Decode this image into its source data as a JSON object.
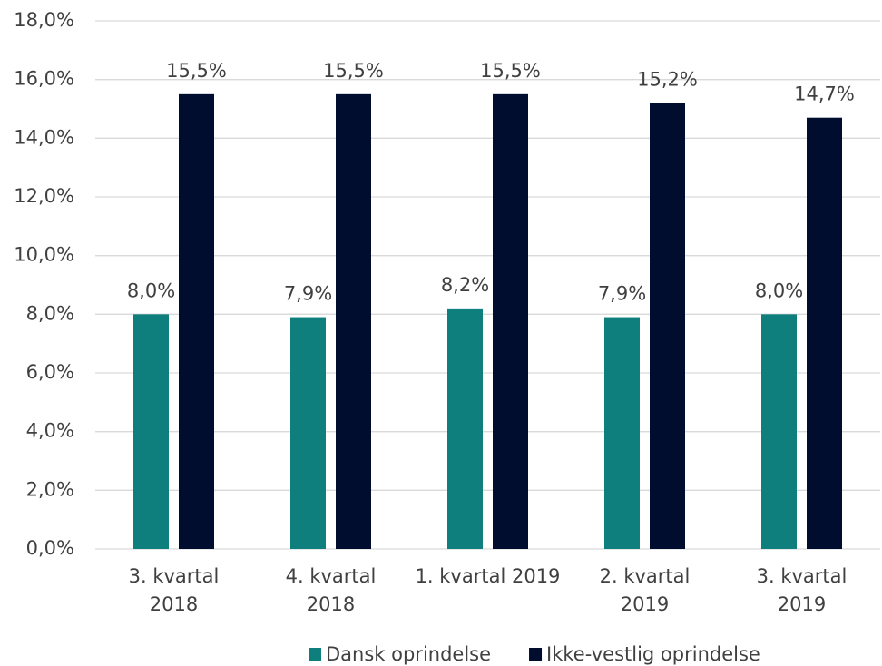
{
  "chart_data": {
    "type": "bar",
    "categories": [
      "3. kvartal\n2018",
      "4. kvartal\n2018",
      "1. kvartal 2019",
      "2. kvartal\n2019",
      "3. kvartal\n2019"
    ],
    "series": [
      {
        "name": "Dansk oprindelse",
        "color": "#0e7f7c",
        "values": [
          8.0,
          7.9,
          8.2,
          7.9,
          8.0
        ],
        "value_labels": [
          "8,0%",
          "7,9%",
          "8,2%",
          "7,9%",
          "8,0%"
        ]
      },
      {
        "name": "Ikke-vestlig oprindelse",
        "color": "#000d2e",
        "values": [
          15.5,
          15.5,
          15.5,
          15.2,
          14.7
        ],
        "value_labels": [
          "15,5%",
          "15,5%",
          "15,5%",
          "15,2%",
          "14,7%"
        ]
      }
    ],
    "ylim": [
      0,
      18
    ],
    "yticks": [
      {
        "value": 0,
        "label": "0,0%"
      },
      {
        "value": 2,
        "label": "2,0%"
      },
      {
        "value": 4,
        "label": "4,0%"
      },
      {
        "value": 6,
        "label": "6,0%"
      },
      {
        "value": 8,
        "label": "8,0%"
      },
      {
        "value": 10,
        "label": "10,0%"
      },
      {
        "value": 12,
        "label": "12,0%"
      },
      {
        "value": 14,
        "label": "14,0%"
      },
      {
        "value": 16,
        "label": "16,0%"
      },
      {
        "value": 18,
        "label": "18,0%"
      }
    ],
    "grid": true,
    "legend": "bottom"
  }
}
